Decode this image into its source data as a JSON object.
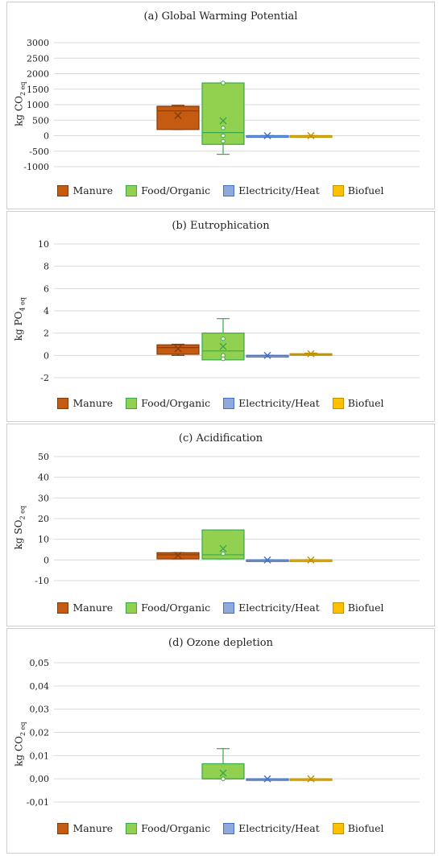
{
  "colors": {
    "manure": "#c55a11",
    "food": "#92d050",
    "electricity": "#8eaadb",
    "biofuel": "#ffc000",
    "manure_edge": "#843c0c",
    "food_edge": "#3aa84a",
    "electricity_edge": "#4472c4",
    "biofuel_edge": "#bf9000",
    "grid": "#d9d9d9"
  },
  "legend": [
    {
      "key": "manure",
      "label": "Manure"
    },
    {
      "key": "food",
      "label": "Food/Organic"
    },
    {
      "key": "electricity",
      "label": "Electricity/Heat"
    },
    {
      "key": "biofuel",
      "label": "Biofuel"
    }
  ],
  "chart_data": [
    {
      "type": "box",
      "title": "(a) Global Warming Potential",
      "ylabel_main": "kg CO",
      "ylabel_sub": "2 eq",
      "ylim": [
        -1000,
        3000
      ],
      "yticks": [
        "3000",
        "2500",
        "2000",
        "1500",
        "1000",
        "500",
        "0",
        "-500",
        "-1000"
      ],
      "grid": true,
      "legend_position": "bottom",
      "series": [
        {
          "key": "manure",
          "name": "Manure",
          "min": 200,
          "q1": 200,
          "median": 800,
          "q3": 950,
          "max": 980,
          "mean": 650,
          "points": []
        },
        {
          "key": "food",
          "name": "Food/Organic",
          "min": -600,
          "q1": -280,
          "median": 100,
          "q3": 1700,
          "max": 1700,
          "mean": 480,
          "points": [
            1700,
            250,
            0,
            -180
          ]
        },
        {
          "key": "electricity",
          "name": "Electricity/Heat",
          "min": 0,
          "q1": 0,
          "median": 0,
          "q3": 0,
          "max": 0,
          "mean": 0,
          "points": []
        },
        {
          "key": "biofuel",
          "name": "Biofuel",
          "min": 0,
          "q1": 0,
          "median": 0,
          "q3": 0,
          "max": 0,
          "mean": 0,
          "points": []
        }
      ]
    },
    {
      "type": "box",
      "title": "(b) Eutrophication",
      "ylabel_main": "kg PO",
      "ylabel_sub": "4 eq",
      "ylim": [
        -2,
        10
      ],
      "yticks": [
        "10",
        "8",
        "6",
        "4",
        "2",
        "0",
        "-2"
      ],
      "grid": true,
      "legend_position": "bottom",
      "series": [
        {
          "key": "manure",
          "name": "Manure",
          "min": 0,
          "q1": 0.1,
          "median": 0.7,
          "q3": 0.95,
          "max": 1.0,
          "mean": 0.6,
          "points": []
        },
        {
          "key": "food",
          "name": "Food/Organic",
          "min": -0.4,
          "q1": -0.4,
          "median": 0.4,
          "q3": 2.0,
          "max": 3.3,
          "mean": 0.8,
          "points": [
            1.5,
            0,
            -0.3
          ]
        },
        {
          "key": "electricity",
          "name": "Electricity/Heat",
          "min": 0,
          "q1": 0,
          "median": 0,
          "q3": 0,
          "max": 0,
          "mean": 0,
          "points": []
        },
        {
          "key": "biofuel",
          "name": "Biofuel",
          "min": 0.1,
          "q1": 0.1,
          "median": 0.1,
          "q3": 0.15,
          "max": 0.2,
          "mean": 0.15,
          "points": []
        }
      ]
    },
    {
      "type": "box",
      "title": "(c) Acidification",
      "ylabel_main": "kg SO",
      "ylabel_sub": "2 eq",
      "ylim": [
        -10,
        50
      ],
      "yticks": [
        "50",
        "40",
        "30",
        "20",
        "10",
        "0",
        "-10"
      ],
      "grid": true,
      "legend_position": "bottom",
      "series": [
        {
          "key": "manure",
          "name": "Manure",
          "min": 0.5,
          "q1": 0.5,
          "median": 2.5,
          "q3": 3.5,
          "max": 3.5,
          "mean": 2.2,
          "points": []
        },
        {
          "key": "food",
          "name": "Food/Organic",
          "min": 0.5,
          "q1": 0.5,
          "median": 2.5,
          "q3": 14.5,
          "max": 14.5,
          "mean": 5.5,
          "points": [
            3.0
          ]
        },
        {
          "key": "electricity",
          "name": "Electricity/Heat",
          "min": 0,
          "q1": 0,
          "median": 0,
          "q3": 0,
          "max": 0,
          "mean": 0,
          "points": []
        },
        {
          "key": "biofuel",
          "name": "Biofuel",
          "min": 0,
          "q1": 0,
          "median": 0,
          "q3": 0,
          "max": 0,
          "mean": 0,
          "points": []
        }
      ]
    },
    {
      "type": "box",
      "title": "(d) Ozone depletion",
      "ylabel_main": "kg CO",
      "ylabel_sub": "2 eq",
      "ylim": [
        -0.01,
        0.05
      ],
      "yticks": [
        "0,05",
        "0,04",
        "0,03",
        "0,02",
        "0,01",
        "0,00",
        "-0,01"
      ],
      "grid": true,
      "legend_position": "bottom",
      "series": [
        {
          "key": "manure",
          "name": "Manure",
          "min": null,
          "q1": null,
          "median": null,
          "q3": null,
          "max": null,
          "mean": null,
          "points": []
        },
        {
          "key": "food",
          "name": "Food/Organic",
          "min": 0.0,
          "q1": 0.0,
          "median": 0.0,
          "q3": 0.0065,
          "max": 0.013,
          "mean": 0.0025,
          "points": [
            0.0
          ]
        },
        {
          "key": "electricity",
          "name": "Electricity/Heat",
          "min": 0,
          "q1": 0,
          "median": 0,
          "q3": 0,
          "max": 0,
          "mean": 0,
          "points": []
        },
        {
          "key": "biofuel",
          "name": "Biofuel",
          "min": 0,
          "q1": 0,
          "median": 0,
          "q3": 0,
          "max": 0,
          "mean": 0,
          "points": []
        }
      ]
    }
  ]
}
